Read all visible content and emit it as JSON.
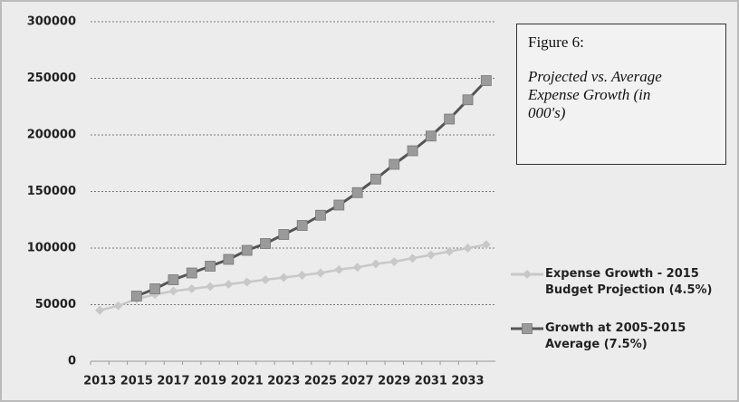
{
  "chart_data": {
    "type": "line",
    "categories": [
      "2013",
      null,
      "2015",
      null,
      "2017",
      null,
      "2019",
      null,
      "2021",
      null,
      "2023",
      null,
      "2025",
      null,
      "2027",
      null,
      "2029",
      null,
      "2031",
      null,
      "2033",
      null
    ],
    "series": [
      {
        "name": "Expense Growth - 2015 Budget Projection (4.5%)",
        "color": "#c8c8c8",
        "marker": "diamond",
        "values": [
          45000,
          49000,
          55000,
          59000,
          62000,
          64000,
          66000,
          68000,
          70000,
          72000,
          74000,
          76000,
          78000,
          81000,
          83000,
          86000,
          88000,
          91000,
          94000,
          97000,
          100000,
          103000
        ]
      },
      {
        "name": "Growth at 2005-2015 Average (7.5%)",
        "color": "#9a9a9a",
        "line_color": "#555555",
        "marker": "square",
        "values": [
          null,
          null,
          57600,
          64000,
          72000,
          78000,
          84000,
          90000,
          98000,
          104000,
          112000,
          120000,
          129000,
          138000,
          149000,
          161000,
          174000,
          186000,
          199000,
          214000,
          231000,
          248000
        ]
      }
    ],
    "ylim": [
      0,
      300000
    ],
    "yticks": [
      0,
      50000,
      100000,
      150000,
      200000,
      250000,
      300000
    ],
    "grid": true,
    "legend": "right",
    "annotation": {
      "heading": "Figure 6:",
      "text": "Projected vs. Average Expense Growth (in 000's)"
    }
  }
}
